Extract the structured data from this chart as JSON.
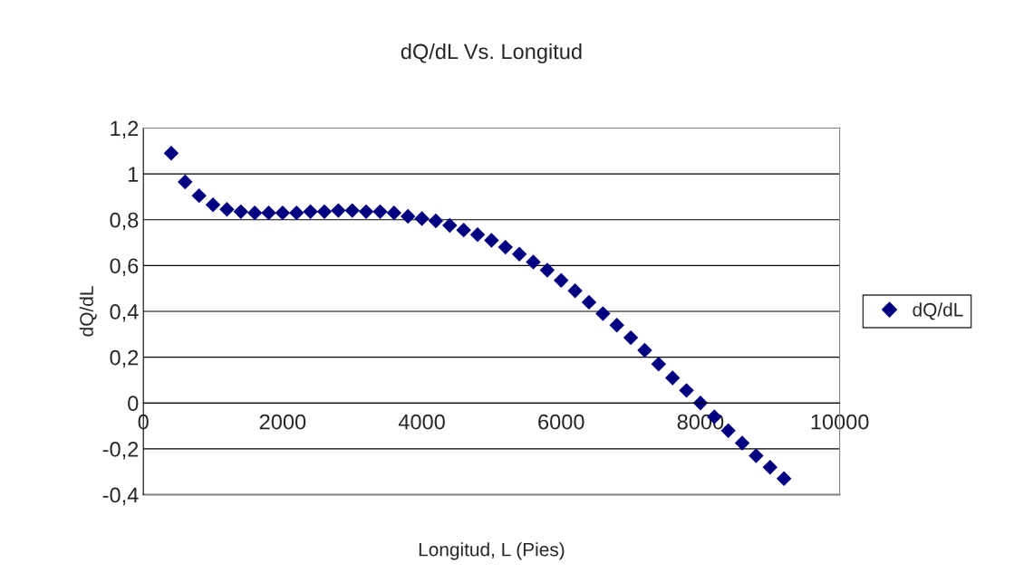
{
  "chart_data": {
    "type": "scatter",
    "title": "dQ/dL Vs. Longitud",
    "xlabel": "Longitud, L (Pies)",
    "ylabel": "dQ/dL",
    "x": [
      400,
      600,
      800,
      1000,
      1200,
      1400,
      1600,
      1800,
      2000,
      2200,
      2400,
      2600,
      2800,
      3000,
      3200,
      3400,
      3600,
      3800,
      4000,
      4200,
      4400,
      4600,
      4800,
      5000,
      5200,
      5400,
      5600,
      5800,
      6000,
      6200,
      6400,
      6600,
      6800,
      7000,
      7200,
      7400,
      7600,
      7800,
      8000,
      8200,
      8400,
      8600,
      8800,
      9000,
      9200
    ],
    "series": [
      {
        "name": "dQ/dL",
        "color": "#000080",
        "values": [
          1.09,
          0.965,
          0.905,
          0.865,
          0.845,
          0.835,
          0.83,
          0.83,
          0.83,
          0.83,
          0.835,
          0.835,
          0.84,
          0.84,
          0.835,
          0.835,
          0.83,
          0.815,
          0.805,
          0.795,
          0.775,
          0.755,
          0.735,
          0.71,
          0.68,
          0.65,
          0.615,
          0.58,
          0.535,
          0.49,
          0.44,
          0.39,
          0.34,
          0.285,
          0.23,
          0.17,
          0.11,
          0.055,
          0,
          -0.06,
          -0.12,
          -0.175,
          -0.23,
          -0.28,
          -0.33
        ]
      }
    ],
    "xlim": [
      0,
      10000
    ],
    "xticks": [
      0,
      2000,
      4000,
      6000,
      8000,
      10000
    ],
    "ylim": [
      -0.4,
      1.2
    ],
    "yticks": [
      {
        "value": -0.4,
        "label": "-0,4"
      },
      {
        "value": -0.2,
        "label": "-0,2"
      },
      {
        "value": 0,
        "label": "0"
      },
      {
        "value": 0.2,
        "label": "0,2"
      },
      {
        "value": 0.4,
        "label": "0,4"
      },
      {
        "value": 0.6,
        "label": "0,6"
      },
      {
        "value": 0.8,
        "label": "0,8"
      },
      {
        "value": 1,
        "label": "1"
      },
      {
        "value": 1.2,
        "label": "1,2"
      }
    ],
    "grid": "y",
    "legend": "right",
    "marker": "diamond"
  }
}
